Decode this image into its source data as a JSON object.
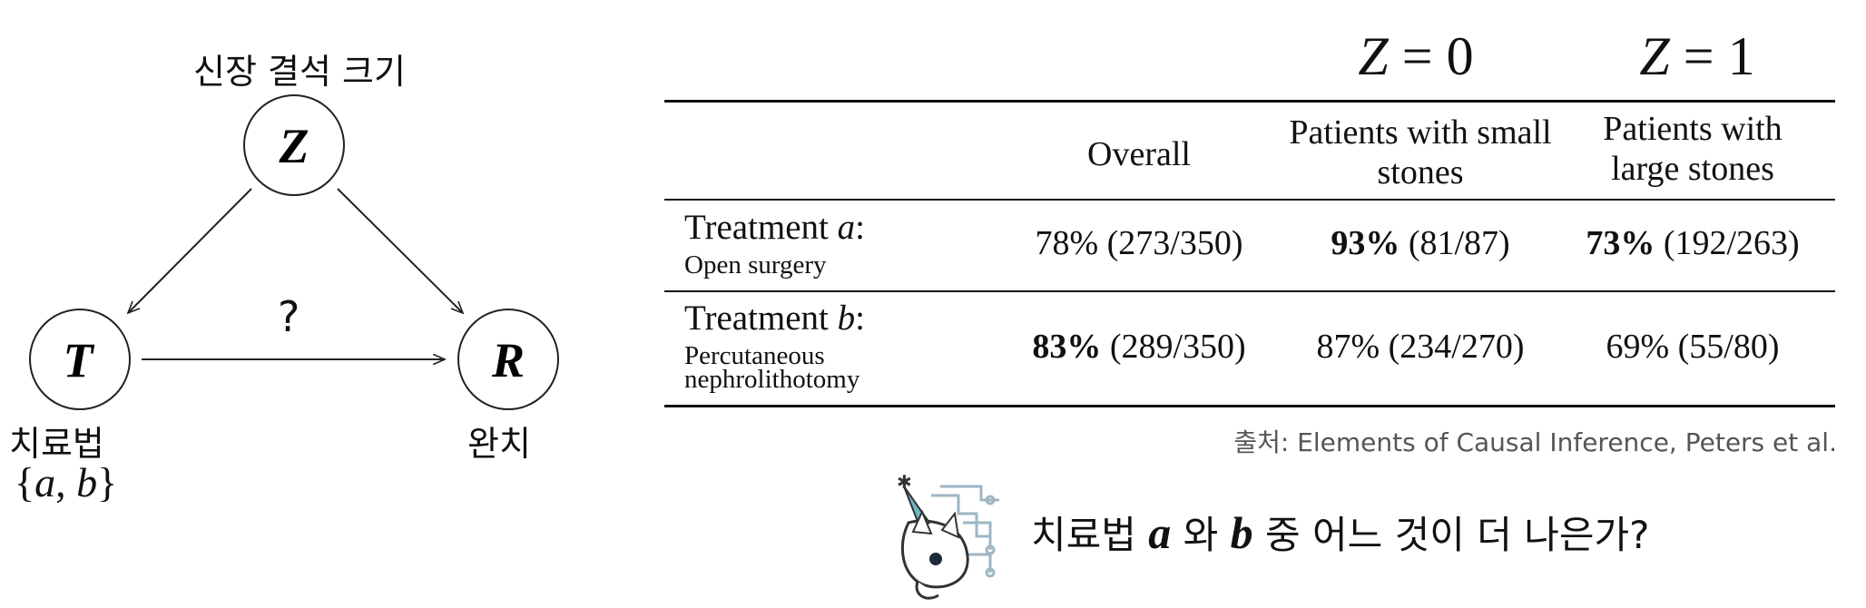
{
  "dag": {
    "z_title": "신장 결석 크기",
    "nodes": {
      "z": "Z",
      "t": "T",
      "r": "R"
    },
    "t_label": "치료법",
    "t_set": {
      "open": "{",
      "a": "a",
      "sep": ", ",
      "b": "b",
      "close": "}"
    },
    "r_label": "완치",
    "edge_question": "?"
  },
  "table": {
    "z_headers": [
      {
        "var": "Z",
        "eq": " = 0"
      },
      {
        "var": "Z",
        "eq": " = 1"
      }
    ],
    "columns": [
      "Overall",
      "Patients with small stones",
      "Patients with large stones"
    ],
    "rows": [
      {
        "label": "Treatment ",
        "label_var": "a",
        "label_colon": ":",
        "sublabel": "Open surgery",
        "cells": [
          {
            "pct": "78%",
            "frac": " (273/350)",
            "bold": false
          },
          {
            "pct": "93%",
            "frac": " (81/87)",
            "bold": true
          },
          {
            "pct": "73%",
            "frac": " (192/263)",
            "bold": true
          }
        ]
      },
      {
        "label": "Treatment ",
        "label_var": "b",
        "label_colon": ":",
        "sublabel": "Percutaneous nephrolithotomy",
        "cells": [
          {
            "pct": "83%",
            "frac": " (289/350)",
            "bold": true
          },
          {
            "pct": "87%",
            "frac": " (234/270)",
            "bold": false
          },
          {
            "pct": "69%",
            "frac": " (55/80)",
            "bold": false
          }
        ]
      }
    ],
    "source": "출처: Elements of Causal Inference, Peters et al."
  },
  "question": {
    "prefix": "치료법 ",
    "a": "a",
    "middle": " 와 ",
    "b": "b",
    "suffix": " 중 어느 것이 더 나은가?"
  }
}
